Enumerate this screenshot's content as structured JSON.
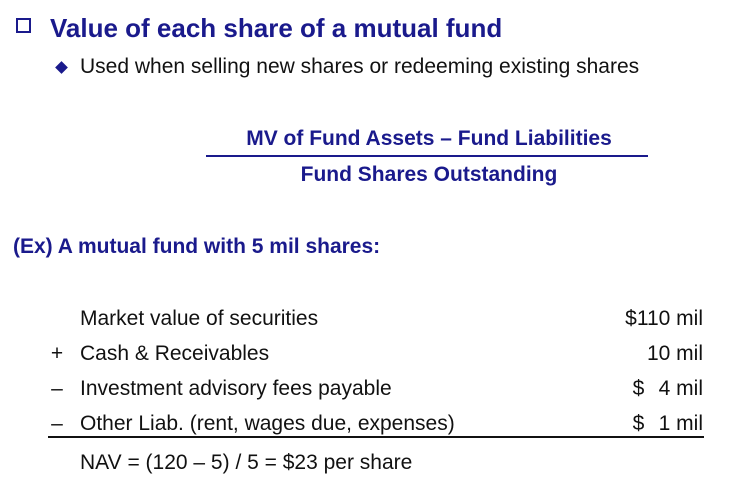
{
  "heading": {
    "title": "Value of each share of a mutual fund",
    "subtitle": "Used when selling new shares or redeeming existing shares"
  },
  "formula": {
    "numerator": "MV of Fund Assets – Fund Liabilities",
    "denominator": "Fund Shares Outstanding"
  },
  "example": {
    "heading": "(Ex) A mutual fund with 5 mil shares:"
  },
  "ledger": {
    "rows": [
      {
        "op": "",
        "label": "Market value of securities",
        "currency": "",
        "amount": "$110 mil"
      },
      {
        "op": "+",
        "label": "Cash & Receivables",
        "currency": "",
        "amount": "10 mil"
      },
      {
        "op": "–",
        "label": "Investment advisory fees payable",
        "currency": "$",
        "amount": "4 mil"
      },
      {
        "op": "–",
        "label": "Other Liab. (rent, wages due, expenses)",
        "currency": "$",
        "amount": "1 mil"
      }
    ],
    "result": "NAV = (120 – 5) / 5 = $23 per share"
  },
  "colors": {
    "accent": "#1a1a8c",
    "text": "#111111"
  }
}
